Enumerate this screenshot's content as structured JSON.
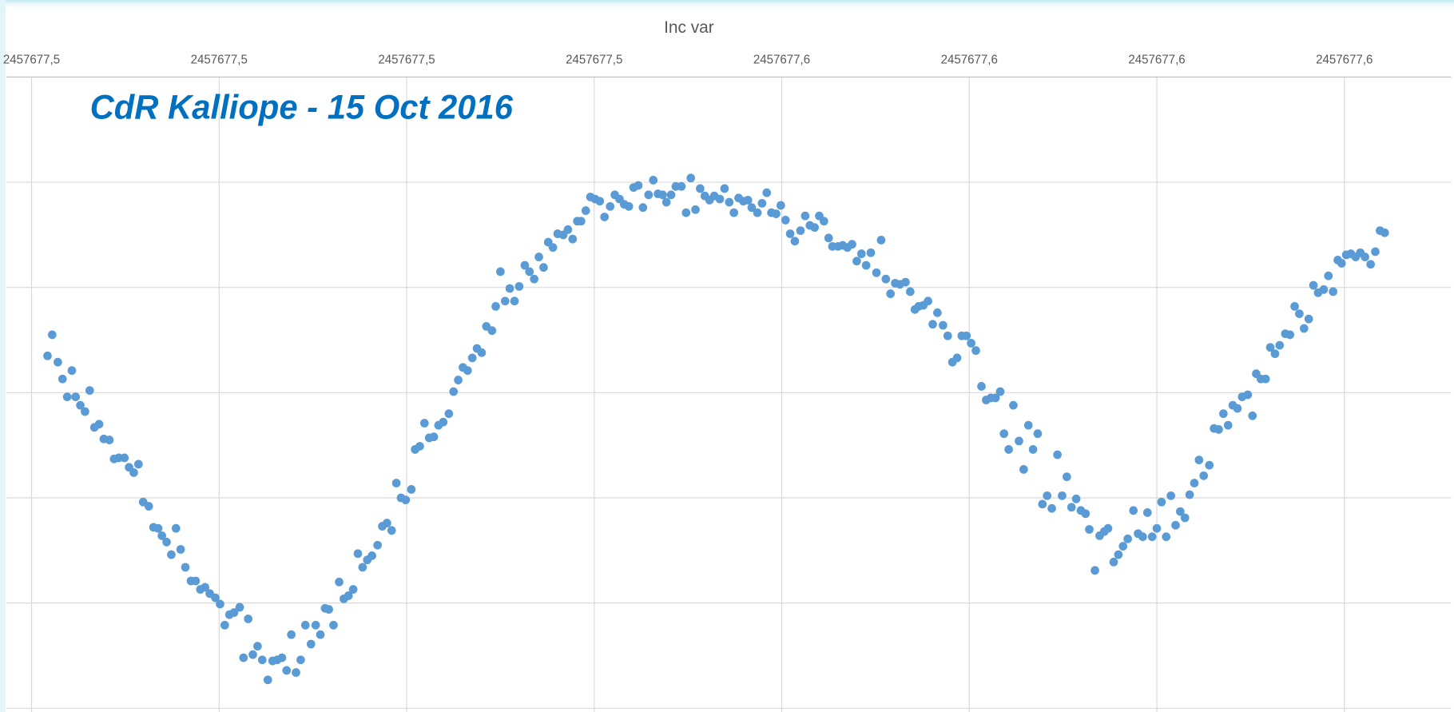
{
  "chart_data": {
    "type": "scatter",
    "title": "Inc var",
    "annotation": "CdR Kalliope - 15 Oct 2016",
    "color": "#5b9bd5",
    "xlim": [
      2457677.467,
      2457677.621
    ],
    "xticks": [
      {
        "value": 2457677.47,
        "label": "2457677,5"
      },
      {
        "value": 2457677.49,
        "label": "2457677,5"
      },
      {
        "value": 2457677.51,
        "label": "2457677,5"
      },
      {
        "value": 2457677.53,
        "label": "2457677,5"
      },
      {
        "value": 2457677.55,
        "label": "2457677,6"
      },
      {
        "value": 2457677.57,
        "label": "2457677,6"
      },
      {
        "value": 2457677.59,
        "label": "2457677,6"
      },
      {
        "value": 2457677.61,
        "label": "2457677,6"
      }
    ],
    "ylim": [
      0,
      6
    ],
    "yticks": [
      0,
      1,
      2,
      3,
      4,
      5,
      6
    ],
    "grid": true,
    "x": [
      2457677.4717,
      2457677.4722,
      2457677.4728,
      2457677.4733,
      2457677.4738,
      2457677.4743,
      2457677.4747,
      2457677.4752,
      2457677.4757,
      2457677.4762,
      2457677.4767,
      2457677.4772,
      2457677.4777,
      2457677.4783,
      2457677.4788,
      2457677.4793,
      2457677.4799,
      2457677.4804,
      2457677.4809,
      2457677.4814,
      2457677.4819,
      2457677.4825,
      2457677.483,
      2457677.4835,
      2457677.4839,
      2457677.4844,
      2457677.4849,
      2457677.4854,
      2457677.4859,
      2457677.4864,
      2457677.487,
      2457677.4875,
      2457677.488,
      2457677.4885,
      2457677.489,
      2457677.4896,
      2457677.4901,
      2457677.4906,
      2457677.4911,
      2457677.4916,
      2457677.4922,
      2457677.4926,
      2457677.4931,
      2457677.4936,
      2457677.4941,
      2457677.4946,
      2457677.4952,
      2457677.4957,
      2457677.4962,
      2457677.4967,
      2457677.4972,
      2457677.4977,
      2457677.4982,
      2457677.4987,
      2457677.4992,
      2457677.4998,
      2457677.5003,
      2457677.5008,
      2457677.5013,
      2457677.5017,
      2457677.5022,
      2457677.5028,
      2457677.5033,
      2457677.5038,
      2457677.5043,
      2457677.5048,
      2457677.5053,
      2457677.5058,
      2457677.5063,
      2457677.5069,
      2457677.5074,
      2457677.5079,
      2457677.5084,
      2457677.5089,
      2457677.5094,
      2457677.5099,
      2457677.5105,
      2457677.5109,
      2457677.5114,
      2457677.5119,
      2457677.5124,
      2457677.5129,
      2457677.5134,
      2457677.5139,
      2457677.5145,
      2457677.515,
      2457677.5155,
      2457677.516,
      2457677.5165,
      2457677.517,
      2457677.5175,
      2457677.518,
      2457677.5185,
      2457677.5191,
      2457677.5195,
      2457677.52,
      2457677.5205,
      2457677.521,
      2457677.5215,
      2457677.522,
      2457677.5226,
      2457677.5231,
      2457677.5236,
      2457677.5241,
      2457677.5246,
      2457677.5251,
      2457677.5256,
      2457677.5261,
      2457677.5267,
      2457677.5272,
      2457677.5277,
      2457677.5282,
      2457677.5286,
      2457677.5291,
      2457677.5296,
      2457677.5301,
      2457677.5306,
      2457677.5311,
      2457677.5317,
      2457677.5322,
      2457677.5327,
      2457677.5332,
      2457677.5337,
      2457677.5342,
      2457677.5347,
      2457677.5352,
      2457677.5358,
      2457677.5363,
      2457677.5368,
      2457677.5373,
      2457677.5377,
      2457677.5382,
      2457677.5387,
      2457677.5393,
      2457677.5398,
      2457677.5403,
      2457677.5408,
      2457677.5413,
      2457677.5418,
      2457677.5423,
      2457677.5428,
      2457677.5434,
      2457677.5439,
      2457677.5444,
      2457677.5449,
      2457677.5454,
      2457677.5459,
      2457677.5464,
      2457677.5468,
      2457677.5474,
      2457677.5479,
      2457677.5484,
      2457677.5489,
      2457677.5494,
      2457677.5499,
      2457677.5504,
      2457677.5509,
      2457677.5514,
      2457677.552,
      2457677.5525,
      2457677.553,
      2457677.5535,
      2457677.554,
      2457677.5545,
      2457677.555,
      2457677.5554,
      2457677.556,
      2457677.5565,
      2457677.557,
      2457677.5575,
      2457677.558,
      2457677.5585,
      2457677.559,
      2457677.5595,
      2457677.5601,
      2457677.5606,
      2457677.5611,
      2457677.5616,
      2457677.5621,
      2457677.5626,
      2457677.5632,
      2457677.5637,
      2457677.5642,
      2457677.5646,
      2457677.5651,
      2457677.5656,
      2457677.5661,
      2457677.5666,
      2457677.5672,
      2457677.5677,
      2457677.5682,
      2457677.5687,
      2457677.5692,
      2457677.5697,
      2457677.5702,
      2457677.5707,
      2457677.5713,
      2457677.5718,
      2457677.5723,
      2457677.5728,
      2457677.5733,
      2457677.5737,
      2457677.5742,
      2457677.5747,
      2457677.5753,
      2457677.5758,
      2457677.5763,
      2457677.5768,
      2457677.5773,
      2457677.5778,
      2457677.5783,
      2457677.5788,
      2457677.5794,
      2457677.5799,
      2457677.5804,
      2457677.5809,
      2457677.5814,
      2457677.5819,
      2457677.5824,
      2457677.5828,
      2457677.5834,
      2457677.5839,
      2457677.5844,
      2457677.5848,
      2457677.5854,
      2457677.5859,
      2457677.5864,
      2457677.5869,
      2457677.5875,
      2457677.588,
      2457677.5885,
      2457677.589,
      2457677.5895,
      2457677.59,
      2457677.5905,
      2457677.591,
      2457677.5915,
      2457677.592,
      2457677.5925,
      2457677.593,
      2457677.5935,
      2457677.594,
      2457677.5945,
      2457677.595,
      2457677.5956,
      2457677.5961,
      2457677.5966,
      2457677.5971,
      2457677.5976,
      2457677.5981,
      2457677.5986,
      2457677.5991,
      2457677.5997,
      2457677.6002,
      2457677.6006,
      2457677.6011,
      2457677.6016,
      2457677.6021,
      2457677.6026,
      2457677.6031,
      2457677.6037,
      2457677.6042,
      2457677.6047,
      2457677.6052,
      2457677.6057,
      2457677.6062,
      2457677.6067,
      2457677.6072,
      2457677.6078,
      2457677.6083,
      2457677.6088,
      2457677.6093,
      2457677.6097,
      2457677.6102,
      2457677.6107,
      2457677.6112,
      2457677.6117,
      2457677.6122,
      2457677.6128,
      2457677.6133,
      2457677.6138,
      2457677.6143
    ],
    "values": [
      3.35,
      3.55,
      3.29,
      3.13,
      2.96,
      3.21,
      2.96,
      2.88,
      2.82,
      3.02,
      2.67,
      2.7,
      2.56,
      2.55,
      2.37,
      2.38,
      2.38,
      2.29,
      2.24,
      2.32,
      1.96,
      1.92,
      1.72,
      1.71,
      1.64,
      1.58,
      1.46,
      1.71,
      1.51,
      1.34,
      1.21,
      1.21,
      1.13,
      1.15,
      1.09,
      1.05,
      0.99,
      0.79,
      0.89,
      0.91,
      0.96,
      0.48,
      0.85,
      0.51,
      0.59,
      0.46,
      0.27,
      0.45,
      0.46,
      0.48,
      0.36,
      0.7,
      0.34,
      0.46,
      0.79,
      0.61,
      0.79,
      0.7,
      0.95,
      0.94,
      0.79,
      1.2,
      1.04,
      1.07,
      1.13,
      1.47,
      1.34,
      1.41,
      1.45,
      1.55,
      1.73,
      1.76,
      1.69,
      2.14,
      2.0,
      1.98,
      2.08,
      2.46,
      2.49,
      2.71,
      2.57,
      2.58,
      2.69,
      2.72,
      2.8,
      3.01,
      3.12,
      3.24,
      3.21,
      3.33,
      3.42,
      3.38,
      3.63,
      3.59,
      3.82,
      4.15,
      3.87,
      3.99,
      3.87,
      4.01,
      4.21,
      4.15,
      4.08,
      4.29,
      4.19,
      4.43,
      4.38,
      4.51,
      4.5,
      4.55,
      4.46,
      4.63,
      4.63,
      4.73,
      4.86,
      4.84,
      4.82,
      4.67,
      4.77,
      4.88,
      4.84,
      4.79,
      4.77,
      4.95,
      4.97,
      4.76,
      4.88,
      5.02,
      4.89,
      4.88,
      4.81,
      4.88,
      4.96,
      4.96,
      4.71,
      5.04,
      4.74,
      4.94,
      4.87,
      4.83,
      4.87,
      4.84,
      4.94,
      4.81,
      4.71,
      4.85,
      4.82,
      4.83,
      4.76,
      4.71,
      4.8,
      4.9,
      4.71,
      4.7,
      4.78,
      4.64,
      4.51,
      4.44,
      4.54,
      4.68,
      4.59,
      4.57,
      4.68,
      4.63,
      4.47,
      4.39,
      4.39,
      4.4,
      4.38,
      4.41,
      4.25,
      4.32,
      4.21,
      4.33,
      4.14,
      4.45,
      4.08,
      3.94,
      4.04,
      4.03,
      4.05,
      3.96,
      3.79,
      3.82,
      3.83,
      3.87,
      3.65,
      3.76,
      3.64,
      3.54,
      3.29,
      3.33,
      3.54,
      3.54,
      3.47,
      3.4,
      3.06,
      2.93,
      2.95,
      2.95,
      3.01,
      2.61,
      2.46,
      2.88,
      2.54,
      2.27,
      2.69,
      2.46,
      2.61,
      1.94,
      2.02,
      1.9,
      2.41,
      2.02,
      2.2,
      1.91,
      1.99,
      1.88,
      1.85,
      1.7,
      1.31,
      1.64,
      1.68,
      1.71,
      1.39,
      1.46,
      1.54,
      1.61,
      1.88,
      1.66,
      1.63,
      1.86,
      1.63,
      1.71,
      1.96,
      1.63,
      2.02,
      1.74,
      1.87,
      1.81,
      2.03,
      2.14,
      2.36,
      2.21,
      2.31,
      2.66,
      2.65,
      2.8,
      2.69,
      2.88,
      2.85,
      2.96,
      2.98,
      2.78,
      3.18,
      3.13,
      3.13,
      3.43,
      3.37,
      3.45,
      3.56,
      3.55,
      3.82,
      3.75,
      3.61,
      3.7,
      4.02,
      3.95,
      3.98,
      4.11,
      3.96,
      4.26,
      4.23,
      4.31,
      4.32,
      4.29,
      4.33,
      4.29,
      4.22,
      4.34,
      4.54,
      4.52
    ]
  }
}
